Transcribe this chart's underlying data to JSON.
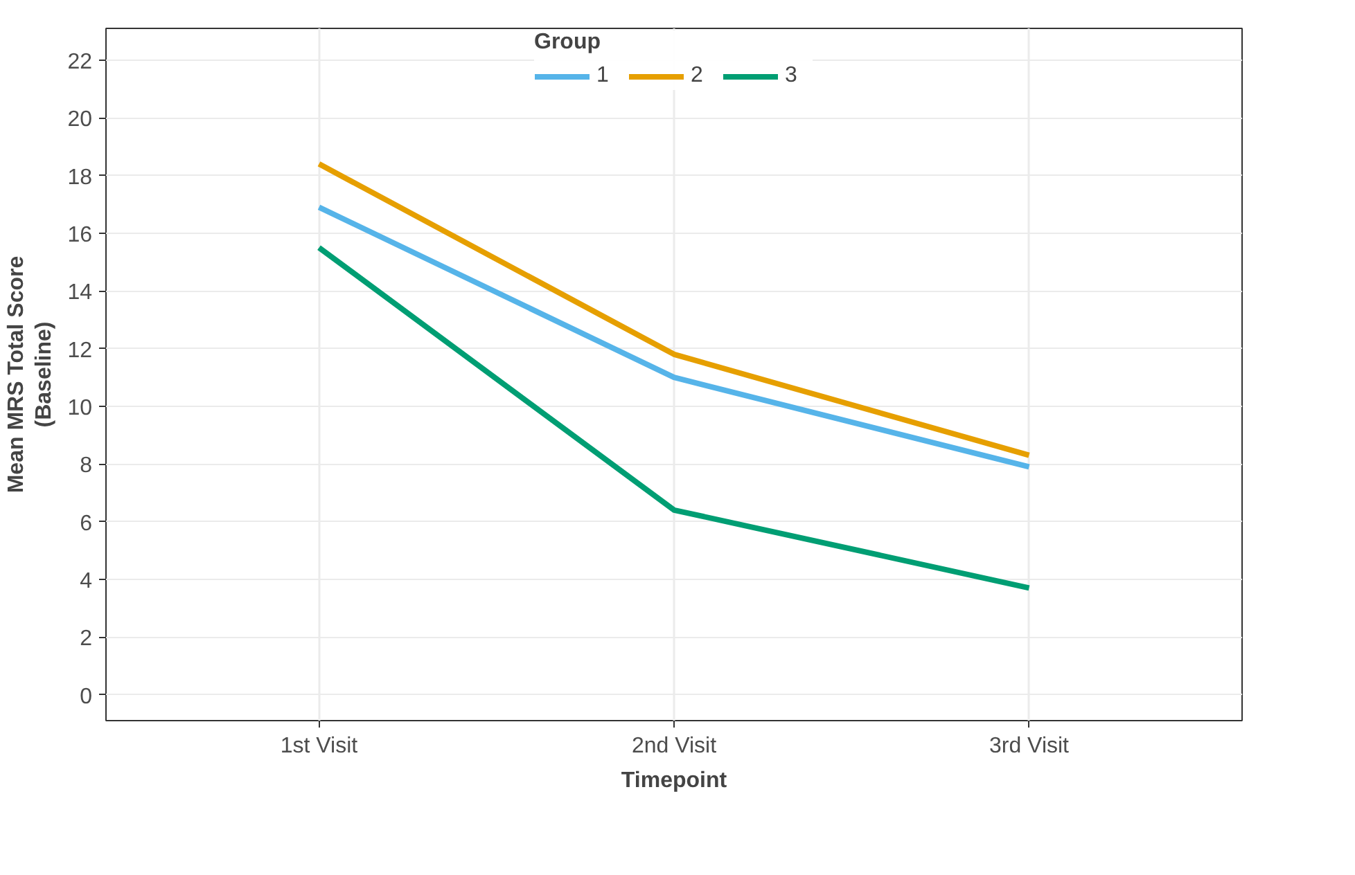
{
  "chart_data": {
    "type": "line",
    "xlabel": "Timepoint",
    "ylabel": "Mean MRS Total Score\n(Baseline)",
    "legend_title": "Group",
    "categories": [
      "1st Visit",
      "2nd Visit",
      "3rd Visit"
    ],
    "series": [
      {
        "name": "1",
        "color": "#56b4e9",
        "values": [
          16.9,
          11.0,
          7.9
        ]
      },
      {
        "name": "2",
        "color": "#e69f00",
        "values": [
          18.4,
          11.8,
          8.3
        ]
      },
      {
        "name": "3",
        "color": "#009e73",
        "values": [
          15.5,
          6.4,
          3.7
        ]
      }
    ],
    "ylim": [
      -0.9,
      23.1
    ],
    "yticks": [
      0,
      2,
      4,
      6,
      8,
      10,
      12,
      14,
      16,
      18,
      20,
      22
    ],
    "grid": true,
    "legend": "top",
    "marker": "none",
    "line_style": "solid"
  }
}
